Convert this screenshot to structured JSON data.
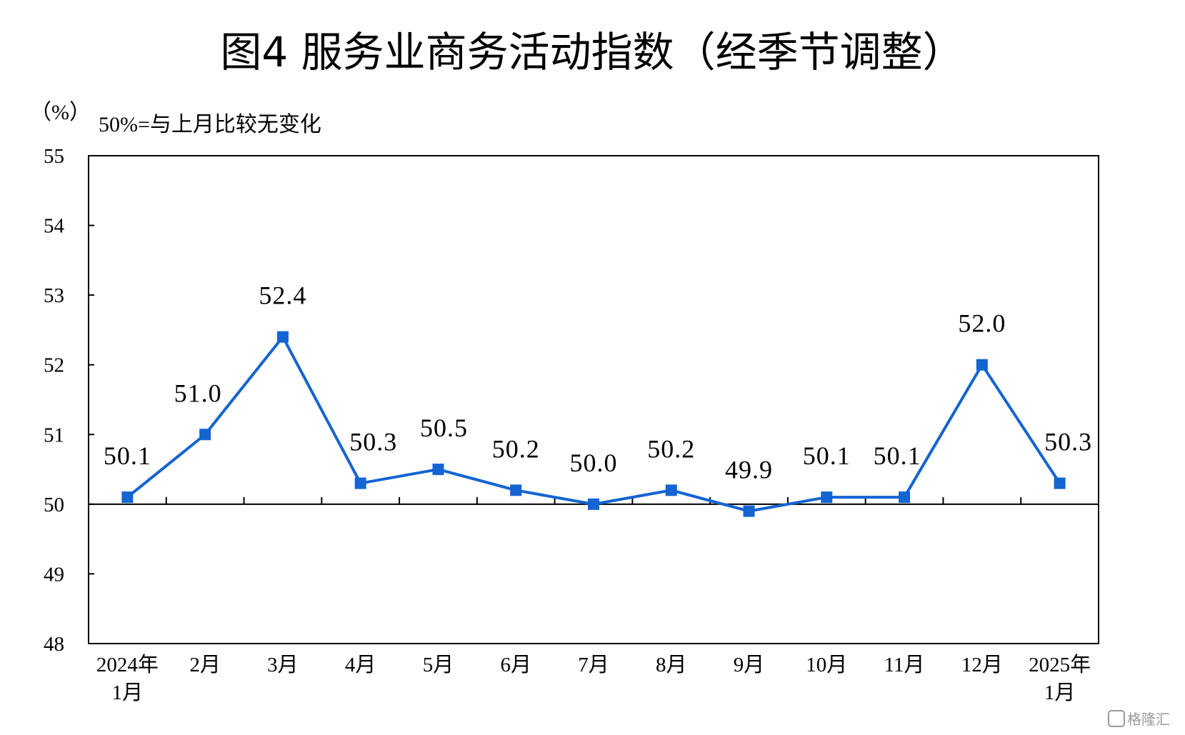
{
  "chart_data": {
    "type": "line",
    "title": "图4  服务业商务活动指数（经季节调整）",
    "y_unit": "（%）",
    "note": "50%=与上月比较无变化",
    "ylim": [
      48,
      55
    ],
    "yticks": [
      48,
      49,
      50,
      51,
      52,
      53,
      54,
      55
    ],
    "reference_line": 50,
    "categories": [
      [
        "2024年",
        "1月"
      ],
      [
        "2月"
      ],
      [
        "3月"
      ],
      [
        "4月"
      ],
      [
        "5月"
      ],
      [
        "6月"
      ],
      [
        "7月"
      ],
      [
        "8月"
      ],
      [
        "9月"
      ],
      [
        "10月"
      ],
      [
        "11月"
      ],
      [
        "12月"
      ],
      [
        "2025年",
        "1月"
      ]
    ],
    "series": [
      {
        "color": "#1464d2",
        "values": [
          50.1,
          51.0,
          52.4,
          50.3,
          50.5,
          50.2,
          50.0,
          50.2,
          49.9,
          50.1,
          50.1,
          52.0,
          50.3
        ],
        "labels": [
          "50.1",
          "51.0",
          "52.4",
          "50.3",
          "50.5",
          "50.2",
          "50.0",
          "50.2",
          "49.9",
          "50.1",
          "50.1",
          "52.0",
          "50.3"
        ]
      }
    ],
    "grid": false,
    "legend": "none"
  },
  "watermark": "格隆汇"
}
